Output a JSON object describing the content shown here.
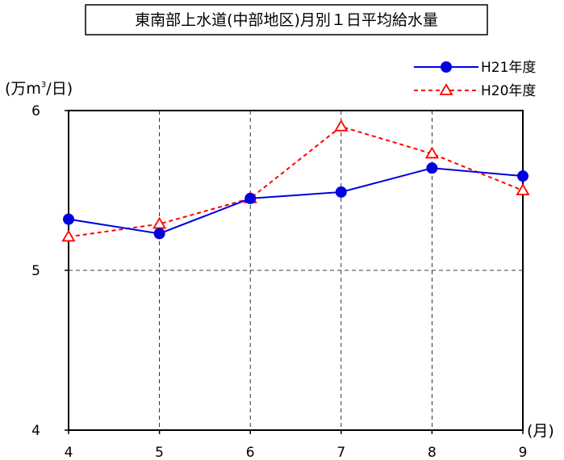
{
  "chart_data": {
    "type": "line",
    "title": "東南部上水道(中部地区)月別１日平均給水量",
    "ylabel_prefix": "(万m",
    "ylabel_superscript": "3",
    "ylabel_suffix": "/日)",
    "xlabel": "(月)",
    "x": [
      4,
      5,
      6,
      7,
      8,
      9
    ],
    "x_tick_labels": [
      "4",
      "5",
      "6",
      "7",
      "8",
      "9"
    ],
    "y_tick_labels": [
      "4",
      "5",
      "6"
    ],
    "ylim": [
      4,
      6
    ],
    "grid": true,
    "legend_position": "top-right",
    "series": [
      {
        "name": "H21年度",
        "values": [
          5.32,
          5.23,
          5.45,
          5.49,
          5.64,
          5.59
        ],
        "color": "#0000e0",
        "marker": "circle",
        "line_style": "solid"
      },
      {
        "name": "H20年度",
        "values": [
          5.21,
          5.29,
          5.45,
          5.9,
          5.73,
          5.5
        ],
        "color": "#ff0000",
        "marker": "triangle-open",
        "line_style": "dashed"
      }
    ]
  }
}
